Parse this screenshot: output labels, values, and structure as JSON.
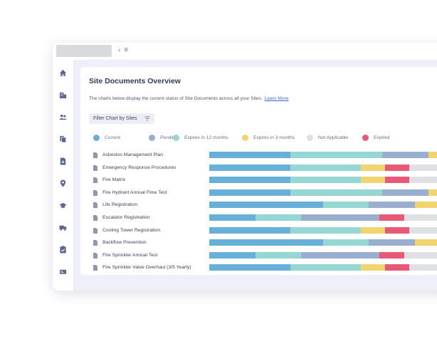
{
  "topbar": {
    "collapse_glyph": "‹ ≡"
  },
  "sidebar": {
    "icons": [
      "home-icon",
      "building-icon",
      "users-icon",
      "documents-icon",
      "file-add-icon",
      "location-pin-icon",
      "graduation-cap-icon",
      "truck-icon",
      "clipboard-check-icon",
      "id-card-icon"
    ]
  },
  "card": {
    "title": "Site Documents Overview",
    "description": "The charts below display the current status of Site Documents across all your Sites.",
    "learn_more": "Learn More",
    "filter_label": "Filter Chart by Sites"
  },
  "colors": {
    "current": "#66b0d9",
    "pending": "#9aaecf",
    "expires_12": "#96d6d3",
    "expires_3": "#f2d46f",
    "not_applicable": "#dfe0e3",
    "expired": "#e95877"
  },
  "legend": [
    {
      "key": "current",
      "label": "Current"
    },
    {
      "key": "pending",
      "label": "Pending"
    },
    {
      "key": "expires_12",
      "label": "Expires in 12 months"
    },
    {
      "key": "expires_3",
      "label": "Expires in 3 months"
    },
    {
      "key": "not_applicable",
      "label": "Not Applicable"
    },
    {
      "key": "expired",
      "label": "Expired"
    }
  ],
  "documents": [
    {
      "label": "Asbestos Management Plan",
      "segments": [
        [
          "current",
          0.3
        ],
        [
          "expires_12",
          0.34
        ],
        [
          "pending",
          0.17
        ],
        [
          "expires_3",
          0.19
        ]
      ]
    },
    {
      "label": "Emergency Response Procedures",
      "segments": [
        [
          "current",
          0.3
        ],
        [
          "expires_12",
          0.26
        ],
        [
          "expires_3",
          0.09
        ],
        [
          "expired",
          0.09
        ],
        [
          "not_applicable",
          0.26
        ]
      ]
    },
    {
      "label": "Fire Matrix",
      "segments": [
        [
          "current",
          0.3
        ],
        [
          "expires_12",
          0.26
        ],
        [
          "expires_3",
          0.09
        ],
        [
          "expired",
          0.09
        ],
        [
          "not_applicable",
          0.26
        ]
      ]
    },
    {
      "label": "Fire Hydrant Annual Flow Test",
      "segments": [
        [
          "current",
          0.3
        ],
        [
          "expires_12",
          0.34
        ],
        [
          "pending",
          0.17
        ],
        [
          "expires_3",
          0.19
        ]
      ]
    },
    {
      "label": "Life Registration",
      "segments": [
        [
          "current",
          0.42
        ],
        [
          "expires_12",
          0.17
        ],
        [
          "pending",
          0.17
        ],
        [
          "expires_3",
          0.24
        ]
      ]
    },
    {
      "label": "Escalator Registration",
      "segments": [
        [
          "current",
          0.17
        ],
        [
          "expires_12",
          0.17
        ],
        [
          "pending",
          0.29
        ],
        [
          "expired",
          0.09
        ],
        [
          "not_applicable",
          0.28
        ]
      ]
    },
    {
      "label": "Cooling Tower Registration",
      "segments": [
        [
          "current",
          0.3
        ],
        [
          "expires_12",
          0.26
        ],
        [
          "expires_3",
          0.09
        ],
        [
          "expired",
          0.09
        ],
        [
          "not_applicable",
          0.26
        ]
      ]
    },
    {
      "label": "Backflow Prevention",
      "segments": [
        [
          "current",
          0.42
        ],
        [
          "expires_12",
          0.17
        ],
        [
          "pending",
          0.17
        ],
        [
          "expires_3",
          0.24
        ]
      ]
    },
    {
      "label": "Fire Sprinkler Annual Test",
      "segments": [
        [
          "current",
          0.17
        ],
        [
          "expires_12",
          0.17
        ],
        [
          "pending",
          0.29
        ],
        [
          "expired",
          0.09
        ],
        [
          "not_applicable",
          0.28
        ]
      ]
    },
    {
      "label": "Fire Sprinkler Valve Overhaul (3/5 Yearly)",
      "segments": [
        [
          "current",
          0.3
        ],
        [
          "expires_12",
          0.26
        ],
        [
          "expires_3",
          0.09
        ],
        [
          "expired",
          0.09
        ],
        [
          "not_applicable",
          0.26
        ]
      ]
    }
  ]
}
